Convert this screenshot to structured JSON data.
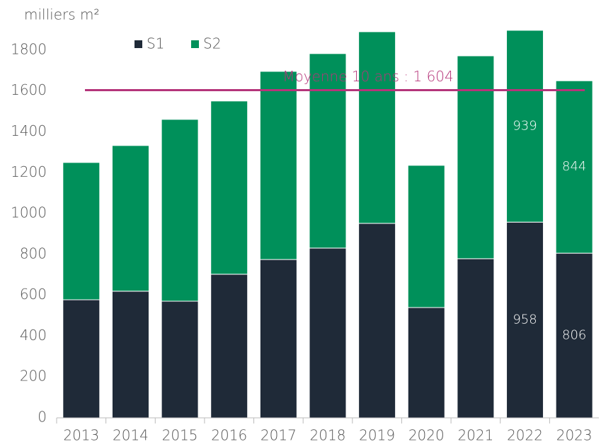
{
  "chart_data": {
    "type": "stacked_bar",
    "y_label": "milliers m²",
    "categories": [
      "2013",
      "2014",
      "2015",
      "2016",
      "2017",
      "2018",
      "2019",
      "2020",
      "2021",
      "2022",
      "2023"
    ],
    "series": [
      {
        "name": "S1",
        "color": "#1f2a38",
        "values": [
          578,
          620,
          571,
          703,
          775,
          831,
          952,
          540,
          779,
          958,
          806
        ],
        "value_labels": [
          null,
          null,
          null,
          null,
          null,
          null,
          null,
          null,
          null,
          "958",
          "806"
        ]
      },
      {
        "name": "S2",
        "color": "#00905a",
        "values": [
          672,
          713,
          890,
          848,
          921,
          952,
          938,
          696,
          993,
          939,
          844
        ],
        "value_labels": [
          null,
          null,
          null,
          null,
          null,
          null,
          null,
          null,
          null,
          "939",
          "844"
        ]
      }
    ],
    "reference_line": {
      "value": 1604,
      "label": "Moyenne 10 ans : 1 604",
      "color": "#b5357a"
    },
    "ylim": [
      0,
      1900
    ],
    "yticks": [
      0,
      200,
      400,
      600,
      800,
      1000,
      1200,
      1400,
      1600,
      1800
    ],
    "grid": false
  }
}
